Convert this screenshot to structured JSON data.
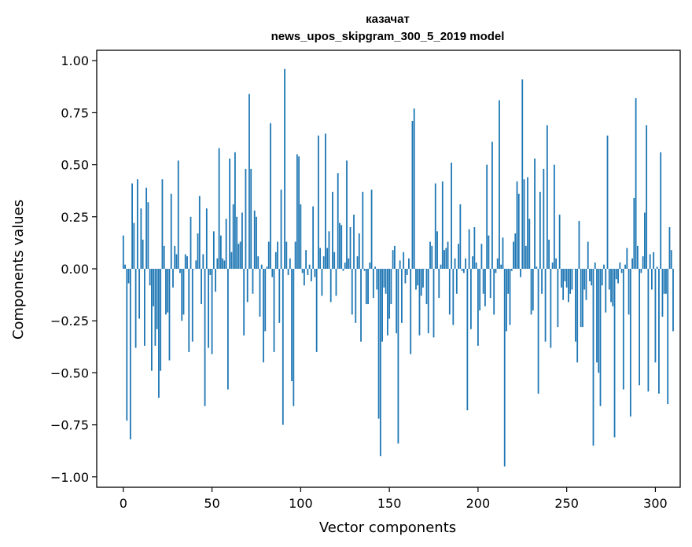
{
  "chart_data": {
    "type": "bar",
    "title": [
      "казачат",
      "news_upos_skipgram_300_5_2019 model"
    ],
    "xlabel": "Vector components",
    "ylabel": "Components values",
    "xlim": [
      -15,
      314
    ],
    "ylim": [
      -1.05,
      1.05
    ],
    "xticks": [
      0,
      50,
      100,
      150,
      200,
      250,
      300
    ],
    "yticks": [
      -1.0,
      -0.75,
      -0.5,
      -0.25,
      0.0,
      0.25,
      0.5,
      0.75,
      1.0
    ],
    "ytick_labels": [
      "−1.00",
      "−0.75",
      "−0.50",
      "−0.25",
      "0.00",
      "0.25",
      "0.50",
      "0.75",
      "1.00"
    ],
    "xtick_labels": [
      "0",
      "50",
      "100",
      "150",
      "200",
      "250",
      "300"
    ],
    "bar_color": "#1f77b4",
    "grid": false,
    "values": [
      0.16,
      0.02,
      -0.73,
      -0.07,
      -0.82,
      0.41,
      0.22,
      -0.38,
      0.43,
      -0.24,
      0.29,
      0.14,
      -0.37,
      0.39,
      0.32,
      -0.08,
      -0.49,
      -0.18,
      -0.37,
      -0.29,
      -0.62,
      -0.49,
      0.43,
      0.11,
      -0.22,
      -0.21,
      -0.44,
      0.36,
      -0.09,
      0.11,
      0.07,
      0.52,
      -0.02,
      -0.25,
      -0.22,
      0.07,
      0.06,
      -0.4,
      0.25,
      -0.35,
      0.0,
      0.04,
      0.17,
      0.35,
      -0.17,
      0.07,
      -0.66,
      0.29,
      -0.38,
      -0.03,
      -0.41,
      0.18,
      -0.11,
      0.05,
      0.58,
      0.16,
      0.05,
      0.04,
      0.24,
      -0.58,
      0.53,
      0.08,
      0.31,
      0.56,
      0.25,
      0.12,
      0.13,
      0.27,
      -0.32,
      0.48,
      -0.16,
      0.84,
      0.48,
      -0.12,
      0.28,
      0.25,
      0.06,
      -0.23,
      0.02,
      -0.45,
      -0.3,
      0.01,
      0.13,
      0.7,
      -0.04,
      -0.4,
      0.08,
      0.13,
      -0.26,
      0.38,
      -0.75,
      0.96,
      0.13,
      -0.03,
      0.05,
      -0.54,
      -0.66,
      0.13,
      0.55,
      0.54,
      0.31,
      -0.02,
      -0.08,
      0.09,
      -0.03,
      0.02,
      -0.06,
      0.3,
      -0.04,
      -0.4,
      0.64,
      0.1,
      -0.13,
      0.06,
      0.65,
      0.1,
      0.18,
      -0.16,
      0.37,
      0.08,
      -0.13,
      0.46,
      0.22,
      0.21,
      -0.01,
      0.03,
      0.52,
      0.05,
      0.2,
      -0.22,
      0.26,
      -0.26,
      0.06,
      0.17,
      -0.35,
      0.37,
      -0.01,
      -0.17,
      -0.17,
      0.03,
      0.38,
      -0.14,
      0.01,
      -0.1,
      -0.72,
      -0.9,
      -0.35,
      -0.09,
      -0.12,
      -0.32,
      -0.24,
      -0.17,
      0.09,
      0.11,
      -0.31,
      -0.84,
      0.04,
      -0.26,
      0.08,
      -0.07,
      -0.03,
      0.05,
      -0.41,
      0.71,
      0.77,
      -0.1,
      -0.08,
      -0.32,
      -0.13,
      -0.09,
      0.0,
      -0.17,
      -0.31,
      0.13,
      0.11,
      -0.33,
      0.41,
      0.18,
      -0.14,
      0.02,
      0.42,
      0.09,
      0.1,
      0.13,
      -0.22,
      0.51,
      -0.27,
      0.05,
      -0.12,
      0.12,
      0.31,
      -0.01,
      -0.02,
      0.05,
      -0.68,
      0.19,
      -0.29,
      0.06,
      0.2,
      0.03,
      -0.37,
      -0.2,
      0.12,
      -0.12,
      -0.18,
      0.5,
      0.16,
      -0.14,
      0.61,
      -0.22,
      -0.02,
      0.05,
      0.81,
      0.02,
      0.15,
      -0.95,
      -0.3,
      -0.12,
      -0.27,
      -0.01,
      0.13,
      0.17,
      0.42,
      0.36,
      -0.04,
      0.91,
      0.43,
      0.11,
      0.44,
      0.24,
      -0.22,
      -0.2,
      0.53,
      0.01,
      -0.6,
      0.37,
      -0.12,
      0.48,
      -0.35,
      0.69,
      0.14,
      -0.38,
      0.03,
      0.5,
      0.05,
      -0.28,
      0.26,
      -0.09,
      -0.15,
      -0.06,
      -0.09,
      -0.16,
      -0.12,
      -0.1,
      0.0,
      -0.35,
      -0.45,
      0.23,
      -0.28,
      -0.28,
      -0.1,
      -0.15,
      0.13,
      -0.06,
      -0.08,
      -0.85,
      0.03,
      -0.45,
      -0.5,
      -0.66,
      -0.08,
      0.02,
      -0.21,
      0.64,
      -0.1,
      -0.16,
      -0.18,
      -0.81,
      -0.05,
      -0.07,
      0.03,
      -0.02,
      -0.58,
      0.02,
      0.1,
      -0.22,
      -0.71,
      0.05,
      0.34,
      0.82,
      0.11,
      -0.56,
      -0.02,
      0.06,
      0.27,
      0.69,
      -0.59,
      0.07,
      -0.1,
      0.08,
      -0.45,
      0.01,
      -0.6,
      0.56,
      -0.23,
      -0.12,
      -0.12,
      -0.65,
      0.2,
      0.09,
      -0.3
    ]
  }
}
